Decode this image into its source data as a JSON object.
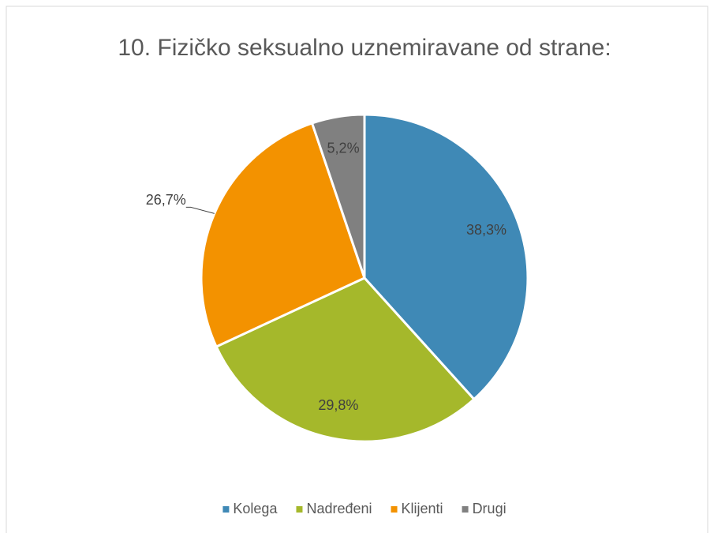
{
  "chart_data": {
    "type": "pie",
    "title": "10. Fizičko seksualno uznemiravane od strane:",
    "categories": [
      "Kolega",
      "Nadređeni",
      "Klijenti",
      "Drugi"
    ],
    "values": [
      38.3,
      29.8,
      26.7,
      5.2
    ],
    "value_labels": [
      "38,3%",
      "29,8%",
      "26,7%",
      "5,2%"
    ],
    "colors": [
      "#3f89b6",
      "#a5b82b",
      "#f39200",
      "#808080"
    ],
    "legend": "bottom"
  }
}
